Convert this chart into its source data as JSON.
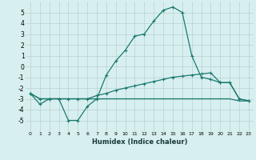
{
  "xlabel": "Humidex (Indice chaleur)",
  "x": [
    0,
    1,
    2,
    3,
    4,
    5,
    6,
    7,
    8,
    9,
    10,
    11,
    12,
    13,
    14,
    15,
    16,
    17,
    18,
    19,
    20,
    21,
    22,
    23
  ],
  "line1": [
    -2.5,
    -3.5,
    -3.0,
    -3.0,
    -5.0,
    -5.0,
    -3.7,
    -3.0,
    -0.8,
    0.5,
    1.5,
    2.8,
    3.0,
    4.2,
    5.2,
    5.5,
    5.0,
    1.0,
    -1.0,
    -1.2,
    -1.5,
    -1.5,
    -3.0,
    -3.2
  ],
  "line2": [
    -2.5,
    -3.0,
    -3.0,
    -3.0,
    -3.0,
    -3.0,
    -3.0,
    -2.7,
    -2.5,
    -2.2,
    -2.0,
    -1.8,
    -1.6,
    -1.4,
    -1.2,
    -1.0,
    -0.9,
    -0.8,
    -0.7,
    -0.6,
    -1.5,
    -1.5,
    -3.0,
    -3.2
  ],
  "line3": [
    -2.5,
    -3.0,
    -3.0,
    -3.0,
    -3.0,
    -3.0,
    -3.0,
    -3.0,
    -3.0,
    -3.0,
    -3.0,
    -3.0,
    -3.0,
    -3.0,
    -3.0,
    -3.0,
    -3.0,
    -3.0,
    -3.0,
    -3.0,
    -3.0,
    -3.0,
    -3.2,
    -3.2
  ],
  "color": "#1a7a6e",
  "bg_color": "#d8eff0",
  "grid_color": "#b8d0d0",
  "ylim": [
    -6,
    6
  ],
  "yticks": [
    -5,
    -4,
    -3,
    -2,
    -1,
    0,
    1,
    2,
    3,
    4,
    5
  ],
  "xticks": [
    0,
    1,
    2,
    3,
    4,
    5,
    6,
    7,
    8,
    9,
    10,
    11,
    12,
    13,
    14,
    15,
    16,
    17,
    18,
    19,
    20,
    21,
    22,
    23
  ]
}
